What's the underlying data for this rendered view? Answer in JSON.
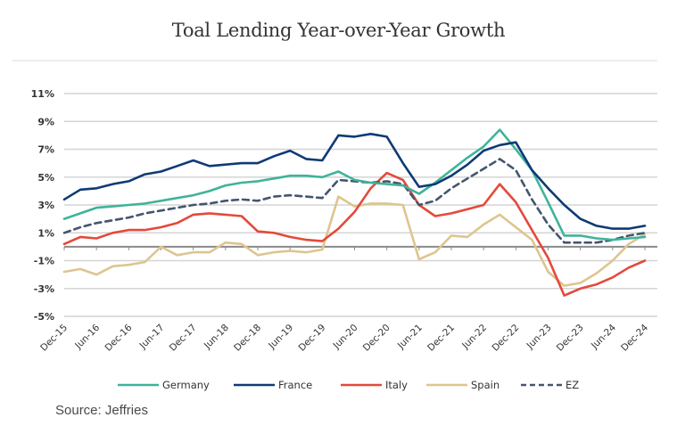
{
  "header": {
    "title": "Toal Lending Year-over-Year Growth"
  },
  "footer": {
    "source": "Source: Jeffries"
  },
  "chart_data": {
    "type": "line",
    "title": "Toal Lending Year-over-Year Growth",
    "xlabel": "",
    "ylabel": "",
    "ylim": [
      -5,
      11
    ],
    "yticks": [
      11,
      9,
      7,
      5,
      3,
      1,
      -1,
      -3,
      -5
    ],
    "ytick_labels": [
      "11%",
      "9%",
      "7%",
      "5%",
      "3%",
      "1%",
      "-1%",
      "-3%",
      "-5%"
    ],
    "xtick_labels": [
      "Dec-15",
      "Jun-16",
      "Dec-16",
      "Jun-17",
      "Dec-17",
      "Jun-18",
      "Dec-18",
      "Jun-19",
      "Dec-19",
      "Jun-20",
      "Dec-20",
      "Jun-21",
      "Dec-21",
      "Jun-22",
      "Dec-22",
      "Jun-23",
      "Dec-23",
      "Jun-24",
      "Dec-24"
    ],
    "x": [
      "Dec-15",
      "Mar-16",
      "Jun-16",
      "Sep-16",
      "Dec-16",
      "Mar-17",
      "Jun-17",
      "Sep-17",
      "Dec-17",
      "Mar-18",
      "Jun-18",
      "Sep-18",
      "Dec-18",
      "Mar-19",
      "Jun-19",
      "Sep-19",
      "Dec-19",
      "Mar-20",
      "Jun-20",
      "Sep-20",
      "Dec-20",
      "Mar-21",
      "Jun-21",
      "Sep-21",
      "Dec-21",
      "Mar-22",
      "Jun-22",
      "Sep-22",
      "Dec-22",
      "Mar-23",
      "Jun-23",
      "Sep-23",
      "Dec-23",
      "Mar-24",
      "Jun-24",
      "Sep-24",
      "Dec-24"
    ],
    "grid": true,
    "legend_position": "bottom",
    "series": [
      {
        "name": "Germany",
        "color": "#3fb39a",
        "dash": false,
        "values": [
          2.0,
          2.4,
          2.8,
          2.9,
          3.0,
          3.1,
          3.3,
          3.5,
          3.7,
          4.0,
          4.4,
          4.6,
          4.7,
          4.9,
          5.1,
          5.1,
          5.0,
          5.4,
          4.8,
          4.6,
          4.5,
          4.4,
          3.8,
          4.6,
          5.5,
          6.4,
          7.2,
          8.4,
          7.0,
          5.5,
          3.2,
          0.8,
          0.8,
          0.6,
          0.5,
          0.6,
          0.7
        ]
      },
      {
        "name": "France",
        "color": "#0f3a74",
        "dash": false,
        "values": [
          3.4,
          4.1,
          4.2,
          4.5,
          4.7,
          5.2,
          5.4,
          5.8,
          6.2,
          5.8,
          5.9,
          6.0,
          6.0,
          6.5,
          6.9,
          6.3,
          6.2,
          8.0,
          7.9,
          8.1,
          7.9,
          6.0,
          4.3,
          4.5,
          5.1,
          5.9,
          6.9,
          7.3,
          7.5,
          5.5,
          4.2,
          3.0,
          2.0,
          1.5,
          1.3,
          1.3,
          1.5
        ]
      },
      {
        "name": "Italy",
        "color": "#e4493b",
        "dash": false,
        "values": [
          0.2,
          0.7,
          0.6,
          1.0,
          1.2,
          1.2,
          1.4,
          1.7,
          2.3,
          2.4,
          2.3,
          2.2,
          1.1,
          1.0,
          0.7,
          0.5,
          0.4,
          1.3,
          2.5,
          4.2,
          5.3,
          4.8,
          3.0,
          2.2,
          2.4,
          2.7,
          3.0,
          4.5,
          3.2,
          1.2,
          -0.8,
          -3.5,
          -3.0,
          -2.7,
          -2.2,
          -1.5,
          -1.0
        ]
      },
      {
        "name": "Spain",
        "color": "#ddc58f",
        "dash": false,
        "values": [
          -1.8,
          -1.6,
          -2.0,
          -1.4,
          -1.3,
          -1.1,
          0.0,
          -0.6,
          -0.4,
          -0.4,
          0.3,
          0.2,
          -0.6,
          -0.4,
          -0.3,
          -0.4,
          -0.2,
          3.6,
          2.9,
          3.1,
          3.1,
          3.0,
          -0.9,
          -0.4,
          0.8,
          0.7,
          1.6,
          2.3,
          1.4,
          0.5,
          -1.8,
          -2.8,
          -2.6,
          -1.9,
          -1.0,
          0.2,
          0.9
        ]
      },
      {
        "name": "EZ",
        "color": "#44556e",
        "dash": true,
        "values": [
          1.0,
          1.4,
          1.7,
          1.9,
          2.1,
          2.4,
          2.6,
          2.8,
          3.0,
          3.1,
          3.3,
          3.4,
          3.3,
          3.6,
          3.7,
          3.6,
          3.5,
          4.8,
          4.7,
          4.6,
          4.7,
          4.5,
          3.0,
          3.3,
          4.2,
          4.9,
          5.6,
          6.3,
          5.5,
          3.4,
          1.6,
          0.3,
          0.3,
          0.3,
          0.5,
          0.8,
          1.0
        ]
      }
    ]
  }
}
